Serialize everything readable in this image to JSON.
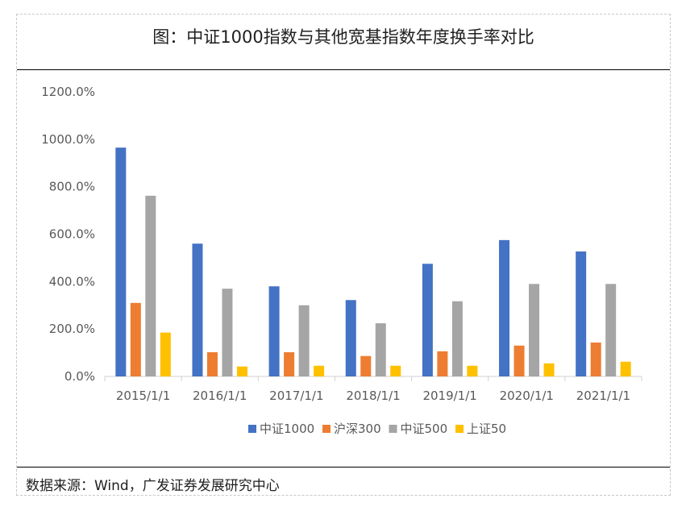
{
  "title": "图：中证1000指数与其他宽基指数年度换手率对比",
  "source": "数据来源：Wind，广发证券发展研究中心",
  "chart_data": {
    "type": "bar",
    "categories": [
      "2015/1/1",
      "2016/1/1",
      "2017/1/1",
      "2018/1/1",
      "2019/1/1",
      "2020/1/1",
      "2021/1/1"
    ],
    "series": [
      {
        "name": "中证1000",
        "color": "#4472c4",
        "values": [
          965,
          560,
          380,
          322,
          475,
          575,
          527
        ]
      },
      {
        "name": "沪深300",
        "color": "#ed7d31",
        "values": [
          310,
          102,
          102,
          86,
          106,
          130,
          143
        ]
      },
      {
        "name": "中证500",
        "color": "#a5a5a5",
        "values": [
          762,
          370,
          300,
          224,
          317,
          390,
          390
        ]
      },
      {
        "name": "上证50",
        "color": "#ffc000",
        "values": [
          185,
          42,
          45,
          45,
          45,
          55,
          62
        ]
      }
    ],
    "y_ticks": [
      "0.0%",
      "200.0%",
      "400.0%",
      "600.0%",
      "800.0%",
      "1000.0%",
      "1200.0%"
    ],
    "ylim": [
      0,
      1200
    ],
    "grid": false,
    "legend_position": "bottom"
  }
}
